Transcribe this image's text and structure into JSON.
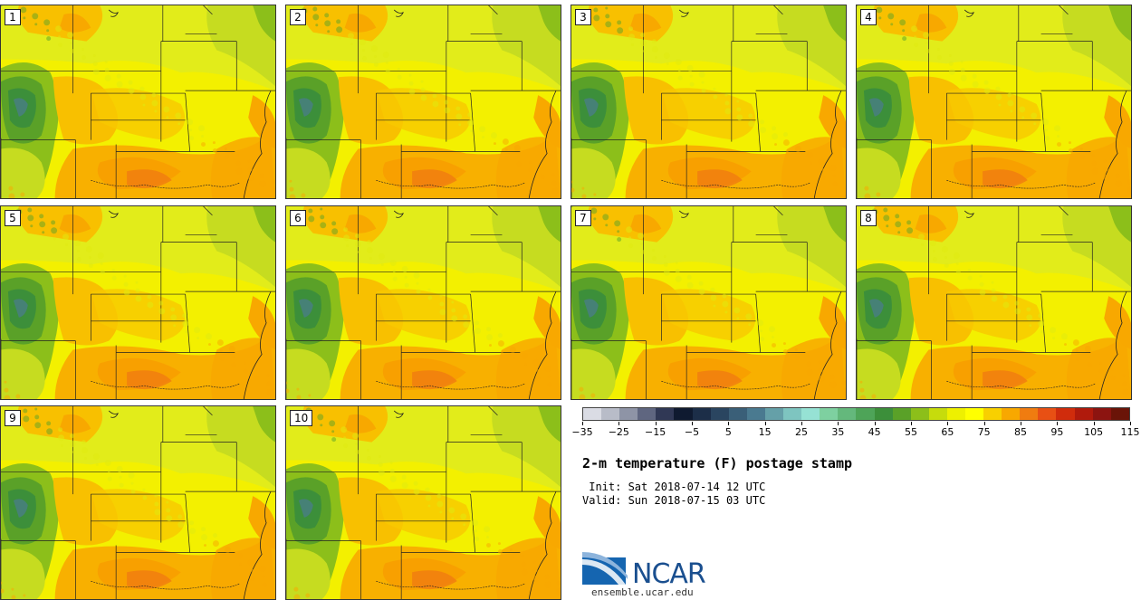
{
  "panels": [
    {
      "label": "1"
    },
    {
      "label": "2"
    },
    {
      "label": "3"
    },
    {
      "label": "4"
    },
    {
      "label": "5"
    },
    {
      "label": "6"
    },
    {
      "label": "7"
    },
    {
      "label": "8"
    },
    {
      "label": "9"
    },
    {
      "label": "10"
    }
  ],
  "colorbar": {
    "colors": [
      "#dadce4",
      "#b8bcc8",
      "#8e94a6",
      "#5f6680",
      "#303855",
      "#0f1a30",
      "#1c2e48",
      "#2a4560",
      "#3a5f78",
      "#4a7a90",
      "#65a0a8",
      "#7ec5c0",
      "#96e2d4",
      "#7ed0a0",
      "#64b87c",
      "#4ea458",
      "#3c8f3a",
      "#5aa128",
      "#8cbf1a",
      "#c6dc0c",
      "#eef000",
      "#ffff00",
      "#f8d000",
      "#f8a800",
      "#f07c10",
      "#e85014",
      "#d02c0c",
      "#b01a0c",
      "#8c1410",
      "#6a1408"
    ],
    "tick_labels": [
      "−35",
      "−25",
      "−15",
      "−5",
      "5",
      "15",
      "25",
      "35",
      "45",
      "55",
      "65",
      "75",
      "85",
      "95",
      "105",
      "115"
    ]
  },
  "title": "2-m temperature (F) postage stamp",
  "init": " Init: Sat 2018-07-14 12 UTC",
  "valid": "Valid: Sun 2018-07-15 03 UTC",
  "logo": {
    "text": "NCAR",
    "url_text": "ensemble.ucar.edu"
  }
}
